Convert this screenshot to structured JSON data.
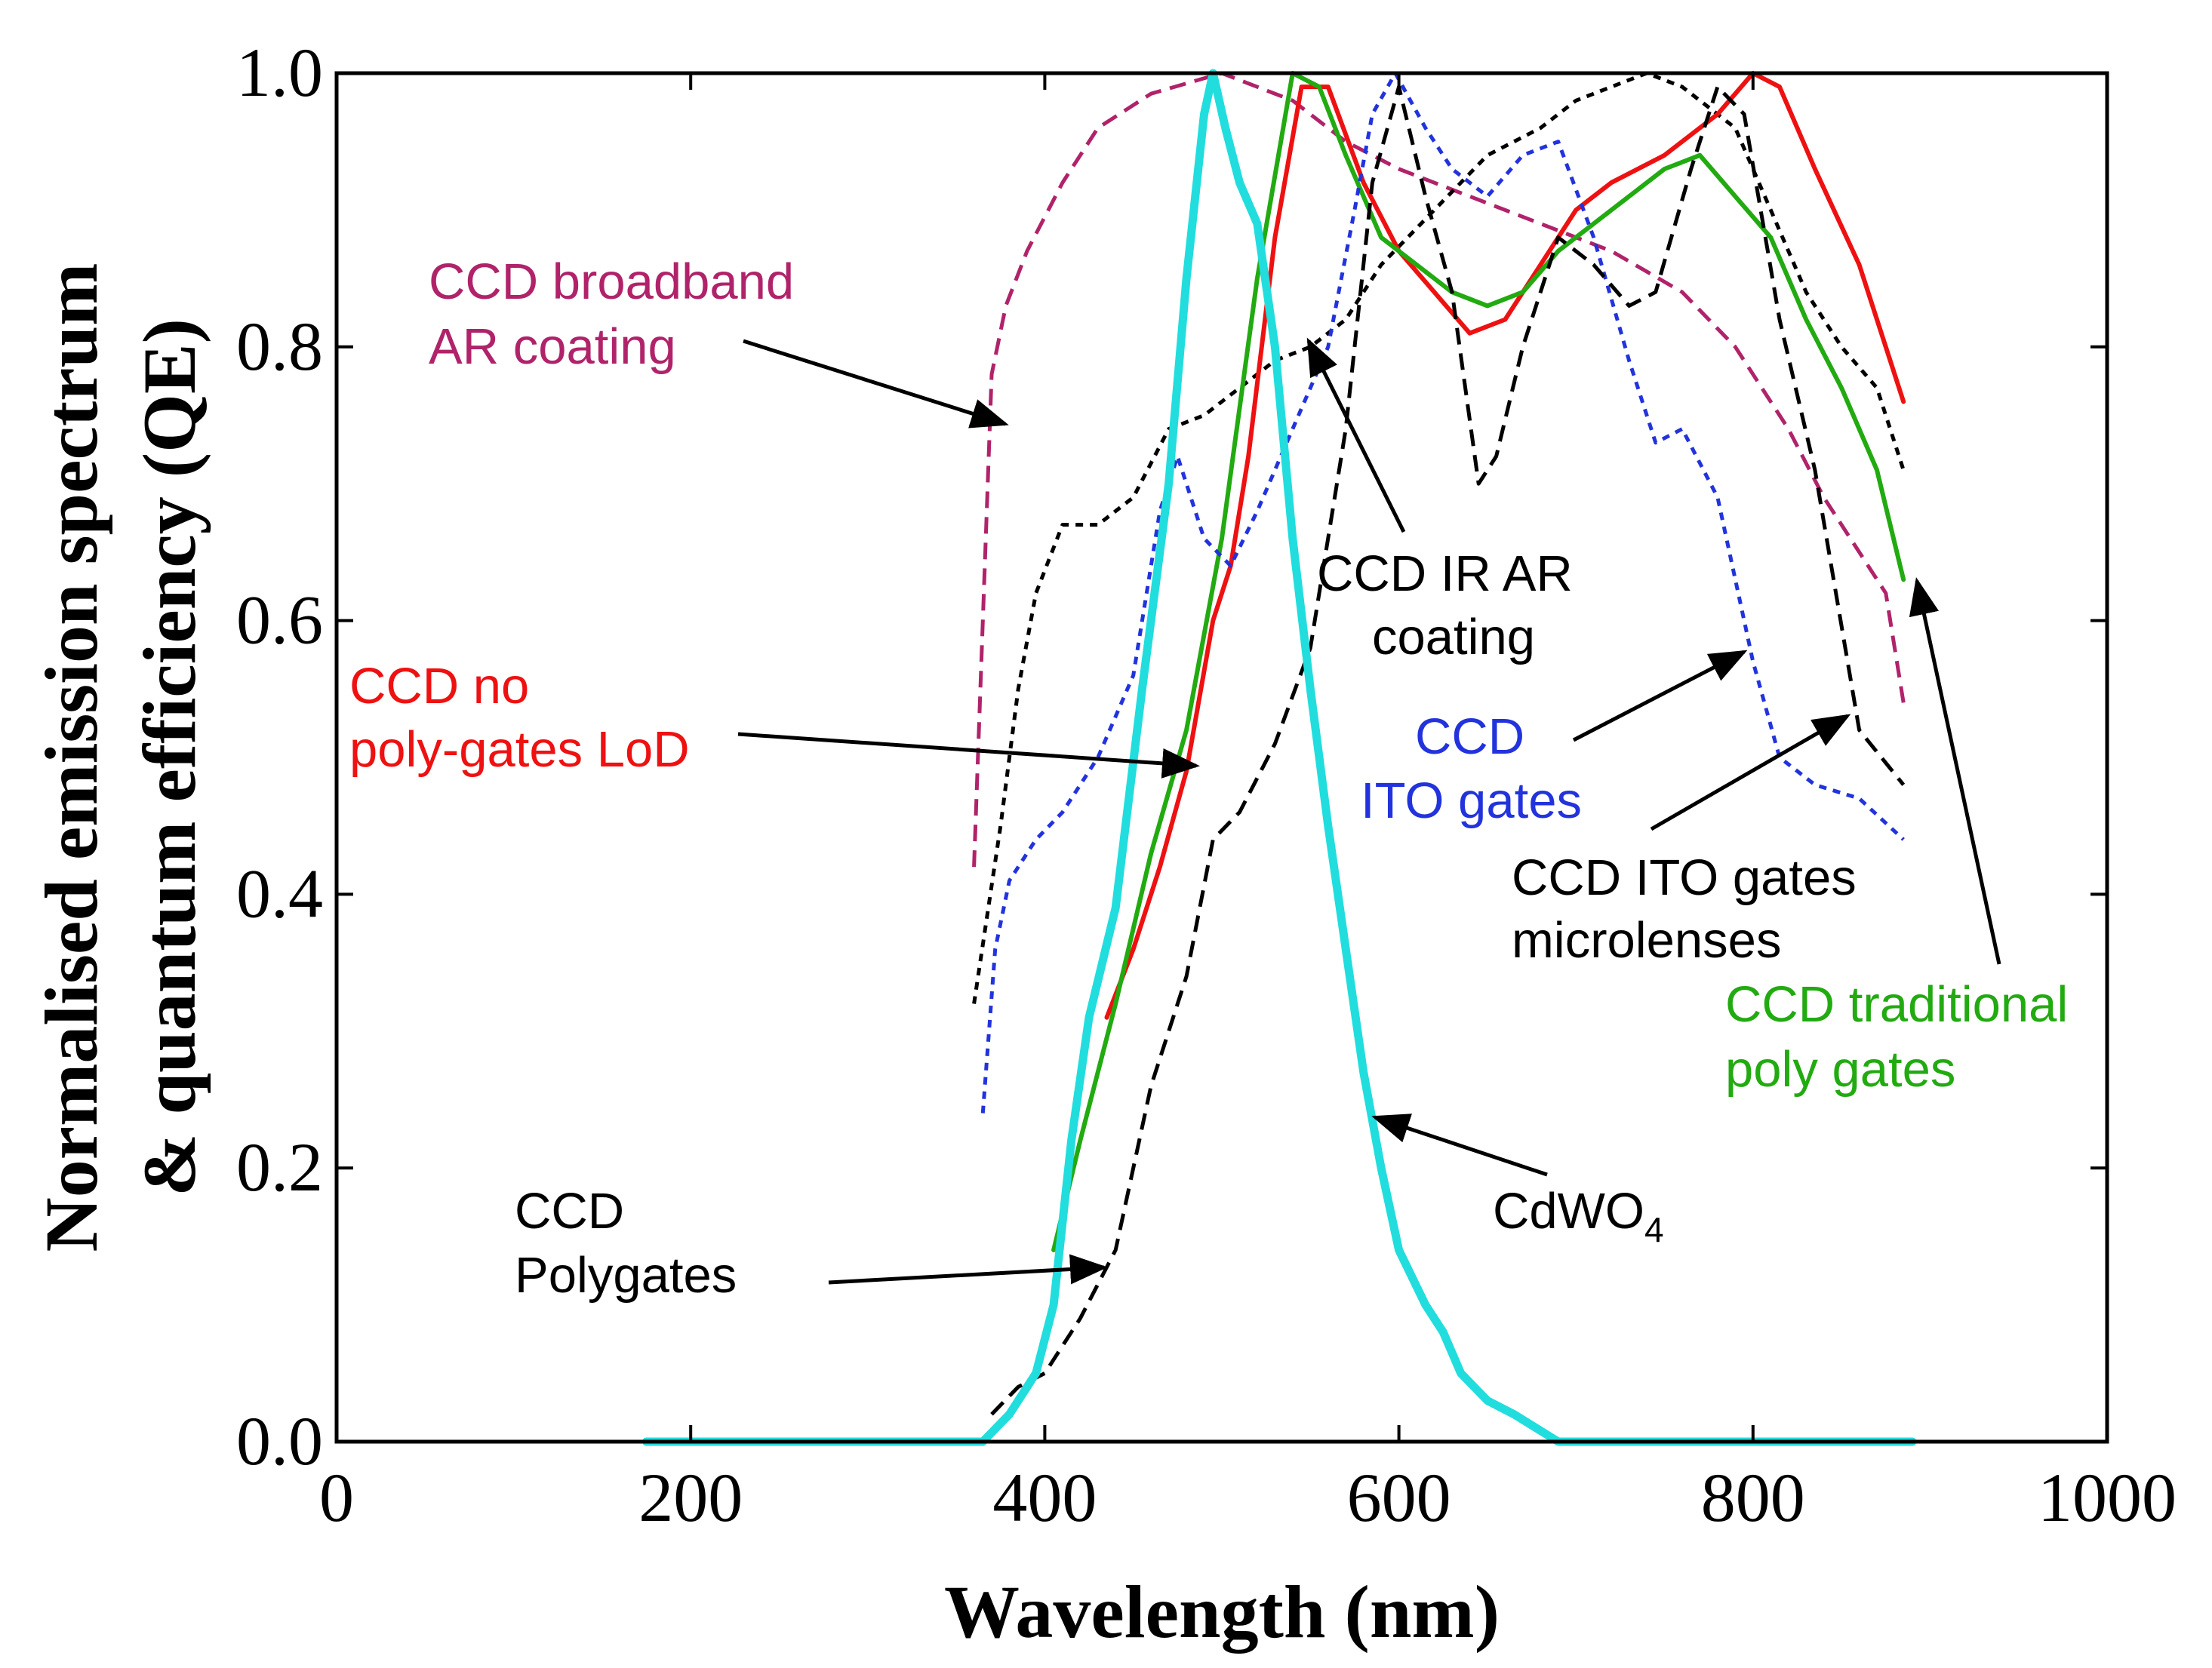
{
  "chart_data": {
    "type": "line",
    "title": "",
    "xlabel": "Wavelength (nm)",
    "ylabel_lines": [
      "Normalised emission spectrum",
      "& quantum efficiency (QE)"
    ],
    "xlim": [
      0,
      1000
    ],
    "ylim": [
      0,
      1.0
    ],
    "x_ticks": [
      {
        "value": 0,
        "label": "0"
      },
      {
        "value": 200,
        "label": "200"
      },
      {
        "value": 400,
        "label": "400"
      },
      {
        "value": 600,
        "label": "600"
      },
      {
        "value": 800,
        "label": "800"
      },
      {
        "value": 1000,
        "label": "1000"
      }
    ],
    "y_ticks": [
      {
        "value": 0.0,
        "label": "0.0"
      },
      {
        "value": 0.2,
        "label": "0.2"
      },
      {
        "value": 0.4,
        "label": "0.4"
      },
      {
        "value": 0.6,
        "label": "0.6"
      },
      {
        "value": 0.8,
        "label": "0.8"
      },
      {
        "value": 1.0,
        "label": "1.0"
      }
    ],
    "grid": false,
    "series": [
      {
        "name": "CCD broadband AR coating",
        "color": "#b0236a",
        "style": "dashed",
        "points": [
          [
            360,
            0.42
          ],
          [
            365,
            0.6
          ],
          [
            370,
            0.78
          ],
          [
            378,
            0.83
          ],
          [
            390,
            0.87
          ],
          [
            410,
            0.92
          ],
          [
            430,
            0.96
          ],
          [
            460,
            0.985
          ],
          [
            500,
            1.0
          ],
          [
            540,
            0.98
          ],
          [
            570,
            0.95
          ],
          [
            600,
            0.93
          ],
          [
            640,
            0.91
          ],
          [
            680,
            0.89
          ],
          [
            720,
            0.87
          ],
          [
            760,
            0.84
          ],
          [
            790,
            0.8
          ],
          [
            820,
            0.74
          ],
          [
            840,
            0.69
          ],
          [
            860,
            0.65
          ],
          [
            875,
            0.62
          ],
          [
            885,
            0.54
          ]
        ]
      },
      {
        "name": "CCD IR AR coating",
        "color": "#000000",
        "style": "dotted",
        "points": [
          [
            360,
            0.32
          ],
          [
            375,
            0.45
          ],
          [
            385,
            0.55
          ],
          [
            395,
            0.62
          ],
          [
            410,
            0.67
          ],
          [
            430,
            0.67
          ],
          [
            450,
            0.69
          ],
          [
            470,
            0.74
          ],
          [
            490,
            0.75
          ],
          [
            510,
            0.77
          ],
          [
            530,
            0.79
          ],
          [
            550,
            0.8
          ],
          [
            570,
            0.82
          ],
          [
            590,
            0.86
          ],
          [
            620,
            0.9
          ],
          [
            650,
            0.94
          ],
          [
            680,
            0.96
          ],
          [
            700,
            0.98
          ],
          [
            720,
            0.99
          ],
          [
            740,
            1.0
          ],
          [
            760,
            0.99
          ],
          [
            790,
            0.96
          ],
          [
            810,
            0.9
          ],
          [
            830,
            0.84
          ],
          [
            850,
            0.8
          ],
          [
            870,
            0.77
          ],
          [
            885,
            0.71
          ]
        ]
      },
      {
        "name": "CCD no poly-gates LoD",
        "color": "#ee1111",
        "style": "solid",
        "points": [
          [
            435,
            0.31
          ],
          [
            450,
            0.36
          ],
          [
            465,
            0.42
          ],
          [
            480,
            0.49
          ],
          [
            495,
            0.6
          ],
          [
            505,
            0.64
          ],
          [
            515,
            0.72
          ],
          [
            530,
            0.88
          ],
          [
            545,
            0.99
          ],
          [
            560,
            0.99
          ],
          [
            580,
            0.92
          ],
          [
            600,
            0.87
          ],
          [
            620,
            0.84
          ],
          [
            640,
            0.81
          ],
          [
            660,
            0.82
          ],
          [
            680,
            0.86
          ],
          [
            700,
            0.9
          ],
          [
            720,
            0.92
          ],
          [
            750,
            0.94
          ],
          [
            780,
            0.97
          ],
          [
            800,
            1.0
          ],
          [
            815,
            0.99
          ],
          [
            835,
            0.93
          ],
          [
            860,
            0.86
          ],
          [
            885,
            0.76
          ]
        ]
      },
      {
        "name": "CCD traditional poly gates",
        "color": "#22aa11",
        "style": "solid",
        "points": [
          [
            405,
            0.14
          ],
          [
            420,
            0.22
          ],
          [
            440,
            0.32
          ],
          [
            460,
            0.43
          ],
          [
            480,
            0.52
          ],
          [
            500,
            0.66
          ],
          [
            520,
            0.85
          ],
          [
            540,
            1.0
          ],
          [
            555,
            0.99
          ],
          [
            570,
            0.94
          ],
          [
            590,
            0.88
          ],
          [
            610,
            0.86
          ],
          [
            630,
            0.84
          ],
          [
            650,
            0.83
          ],
          [
            670,
            0.84
          ],
          [
            690,
            0.87
          ],
          [
            710,
            0.89
          ],
          [
            730,
            0.91
          ],
          [
            750,
            0.93
          ],
          [
            770,
            0.94
          ],
          [
            790,
            0.91
          ],
          [
            810,
            0.88
          ],
          [
            830,
            0.82
          ],
          [
            850,
            0.77
          ],
          [
            870,
            0.71
          ],
          [
            885,
            0.63
          ]
        ]
      },
      {
        "name": "CCD ITO gates",
        "color": "#2233dd",
        "style": "dotted",
        "points": [
          [
            365,
            0.24
          ],
          [
            372,
            0.36
          ],
          [
            380,
            0.41
          ],
          [
            395,
            0.44
          ],
          [
            410,
            0.46
          ],
          [
            430,
            0.5
          ],
          [
            450,
            0.56
          ],
          [
            465,
            0.68
          ],
          [
            475,
            0.72
          ],
          [
            490,
            0.66
          ],
          [
            505,
            0.64
          ],
          [
            520,
            0.68
          ],
          [
            540,
            0.74
          ],
          [
            560,
            0.8
          ],
          [
            575,
            0.9
          ],
          [
            585,
            0.97
          ],
          [
            598,
            1.0
          ],
          [
            615,
            0.96
          ],
          [
            630,
            0.93
          ],
          [
            650,
            0.91
          ],
          [
            670,
            0.94
          ],
          [
            690,
            0.95
          ],
          [
            710,
            0.88
          ],
          [
            730,
            0.79
          ],
          [
            745,
            0.73
          ],
          [
            760,
            0.74
          ],
          [
            780,
            0.69
          ],
          [
            800,
            0.57
          ],
          [
            815,
            0.5
          ],
          [
            835,
            0.48
          ],
          [
            860,
            0.47
          ],
          [
            885,
            0.44
          ]
        ]
      },
      {
        "name": "CCD ITO gates microlenses",
        "color": "#000000",
        "style": "dashed",
        "points": [
          [
            370,
            0.02
          ],
          [
            385,
            0.04
          ],
          [
            400,
            0.05
          ],
          [
            420,
            0.09
          ],
          [
            440,
            0.14
          ],
          [
            460,
            0.26
          ],
          [
            480,
            0.34
          ],
          [
            495,
            0.44
          ],
          [
            510,
            0.46
          ],
          [
            530,
            0.51
          ],
          [
            550,
            0.58
          ],
          [
            570,
            0.74
          ],
          [
            585,
            0.92
          ],
          [
            600,
            0.99
          ],
          [
            615,
            0.91
          ],
          [
            630,
            0.84
          ],
          [
            645,
            0.7
          ],
          [
            655,
            0.72
          ],
          [
            670,
            0.8
          ],
          [
            690,
            0.88
          ],
          [
            710,
            0.86
          ],
          [
            730,
            0.83
          ],
          [
            745,
            0.84
          ],
          [
            765,
            0.93
          ],
          [
            780,
            0.99
          ],
          [
            795,
            0.97
          ],
          [
            815,
            0.82
          ],
          [
            835,
            0.71
          ],
          [
            860,
            0.52
          ],
          [
            885,
            0.48
          ]
        ]
      },
      {
        "name": "CdWO4",
        "color": "#22dddd",
        "style": "thick",
        "points": [
          [
            175,
            0.0
          ],
          [
            280,
            0.0
          ],
          [
            350,
            0.0
          ],
          [
            365,
            0.0
          ],
          [
            380,
            0.02
          ],
          [
            395,
            0.05
          ],
          [
            405,
            0.1
          ],
          [
            415,
            0.22
          ],
          [
            425,
            0.31
          ],
          [
            440,
            0.39
          ],
          [
            455,
            0.55
          ],
          [
            470,
            0.7
          ],
          [
            480,
            0.85
          ],
          [
            490,
            0.97
          ],
          [
            495,
            1.0
          ],
          [
            502,
            0.96
          ],
          [
            510,
            0.92
          ],
          [
            520,
            0.89
          ],
          [
            530,
            0.8
          ],
          [
            540,
            0.66
          ],
          [
            550,
            0.55
          ],
          [
            560,
            0.45
          ],
          [
            570,
            0.36
          ],
          [
            580,
            0.27
          ],
          [
            590,
            0.2
          ],
          [
            600,
            0.14
          ],
          [
            615,
            0.1
          ],
          [
            625,
            0.08
          ],
          [
            635,
            0.05
          ],
          [
            650,
            0.03
          ],
          [
            665,
            0.02
          ],
          [
            690,
            0.0
          ],
          [
            800,
            0.0
          ],
          [
            890,
            0.0
          ]
        ]
      }
    ]
  },
  "annotations": [
    {
      "id": "broadband",
      "lines": [
        "CCD broadband",
        "AR coating"
      ],
      "color": "#b0236a"
    },
    {
      "id": "ir-ar",
      "lines": [
        "CCD IR AR",
        "coating"
      ],
      "color": "#000000"
    },
    {
      "id": "no-poly",
      "lines": [
        "CCD no",
        "poly-gates LoD"
      ],
      "color": "#ee1111"
    },
    {
      "id": "ito",
      "lines": [
        "CCD",
        "ITO gates"
      ],
      "color": "#2233dd"
    },
    {
      "id": "ito-micro",
      "lines": [
        "CCD ITO gates",
        "microlenses"
      ],
      "color": "#000000"
    },
    {
      "id": "traditional",
      "lines": [
        "CCD traditional",
        "poly gates"
      ],
      "color": "#22aa11"
    },
    {
      "id": "polygates",
      "lines": [
        "CCD",
        "Polygates"
      ],
      "color": "#000000"
    },
    {
      "id": "cdwo4",
      "text": "CdWO",
      "subscript": "4",
      "color": "#000000"
    }
  ]
}
